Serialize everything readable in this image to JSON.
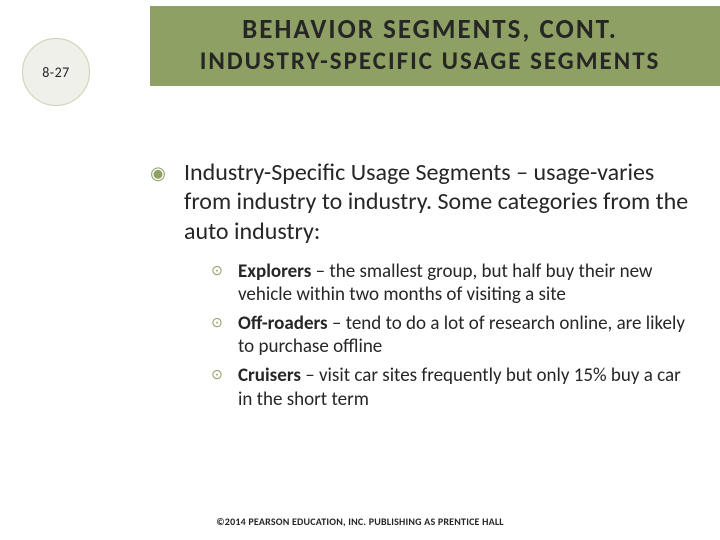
{
  "colors": {
    "header_bg": "#8ea063",
    "header_text": "#262626",
    "circle_fill": "#eef0e9",
    "circle_border": "#c9d1b1",
    "body_text": "#262626",
    "bullet_main": "#8ea063",
    "bullet_sub": "#8ea063",
    "footer_text": "#262626"
  },
  "page_number": "8-27",
  "title": {
    "main": "BEHAVIOR SEGMENTS, CONT.",
    "sub": "INDUSTRY-SPECIFIC USAGE SEGMENTS"
  },
  "intro": "Industry-Specific Usage Segments – usage-varies from industry to industry.  Some categories from the auto industry:",
  "items": [
    {
      "term": "Explorers",
      "desc": " – the smallest group, but half buy their new vehicle within two months of visiting a site"
    },
    {
      "term": "Off-roaders",
      "desc": " – tend to do a lot of research online, are likely to purchase offline"
    },
    {
      "term": "Cruisers",
      "desc": " – visit car sites frequently but only 15% buy a car in the short term"
    }
  ],
  "footer": "©2014 PEARSON EDUCATION, INC. PUBLISHING AS PRENTICE HALL"
}
